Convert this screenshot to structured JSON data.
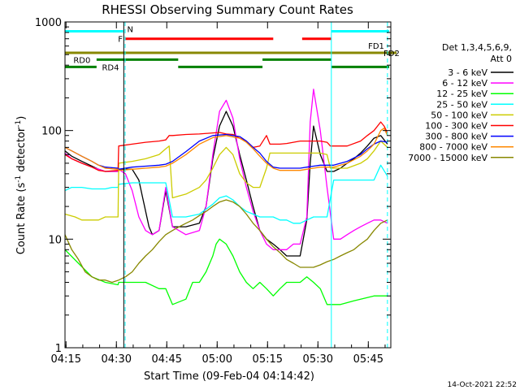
{
  "chart_data": {
    "type": "line",
    "title": "RHESSI Observing Summary Count Rates",
    "xlabel": "Start Time (09-Feb-04 04:14:42)",
    "ylabel_main": "Count Rate (s",
    "ylabel_sup1": "-1",
    "ylabel_mid": " detector",
    "ylabel_sup2": "-1",
    "ylabel_end": ")",
    "yscale": "log",
    "ylim": [
      1,
      1000
    ],
    "x_unit": "minutes after 04:14:42",
    "xlim": [
      0,
      97
    ],
    "x_ticks": [
      {
        "x": 0.3,
        "label": "04:15"
      },
      {
        "x": 15.3,
        "label": "04:30"
      },
      {
        "x": 30.3,
        "label": "04:45"
      },
      {
        "x": 45.3,
        "label": "05:00"
      },
      {
        "x": 60.3,
        "label": "05:15"
      },
      {
        "x": 75.3,
        "label": "05:30"
      },
      {
        "x": 90.3,
        "label": "05:45"
      }
    ],
    "y_ticks": [
      {
        "y": 1,
        "label": "1"
      },
      {
        "y": 10,
        "label": "10"
      },
      {
        "y": 100,
        "label": "100"
      },
      {
        "y": 1000,
        "label": "1000"
      }
    ],
    "legend_header": [
      "Det 1,3,4,5,6,9,",
      "Att 0"
    ],
    "series": [
      {
        "name": "3 - 6 keV",
        "color": "#000000",
        "x": [
          0,
          2,
          5,
          8,
          10,
          12,
          14,
          15.8,
          16,
          20,
          22,
          23,
          25,
          26,
          28,
          30,
          32,
          36,
          40,
          42,
          44,
          46,
          48,
          50,
          52,
          54,
          56,
          58,
          60,
          62,
          64,
          66,
          68,
          70,
          72,
          73,
          74,
          76,
          78,
          80,
          82,
          84,
          86,
          88,
          90,
          92,
          94,
          96
        ],
        "y": [
          65,
          58,
          52,
          47,
          44,
          42,
          42,
          42,
          44,
          44,
          35,
          25,
          13,
          11,
          12,
          28,
          13,
          13,
          14,
          20,
          55,
          110,
          150,
          110,
          60,
          35,
          20,
          12,
          10,
          9,
          8,
          7,
          7,
          7,
          15,
          50,
          110,
          60,
          42,
          42,
          45,
          50,
          55,
          62,
          72,
          85,
          90,
          75
        ]
      },
      {
        "name": "6 - 12 keV",
        "color": "#ff00ff",
        "x": [
          0,
          2,
          5,
          8,
          10,
          12,
          14,
          15.8,
          16,
          18,
          20,
          22,
          24,
          26,
          28,
          30,
          32,
          36,
          40,
          42,
          44,
          46,
          48,
          50,
          52,
          54,
          56,
          58,
          60,
          62,
          64,
          66,
          68,
          70,
          72,
          73,
          74,
          76,
          78,
          80,
          82,
          84,
          86,
          88,
          90,
          92,
          94,
          96
        ],
        "y": [
          62,
          55,
          50,
          46,
          44,
          42,
          42,
          42,
          44,
          40,
          28,
          16,
          12,
          11,
          12,
          30,
          13,
          11,
          12,
          20,
          60,
          150,
          190,
          130,
          55,
          30,
          18,
          12,
          9,
          8,
          8,
          8,
          9,
          9,
          16,
          120,
          240,
          100,
          30,
          10,
          10,
          11,
          12,
          13,
          14,
          15,
          15,
          14
        ]
      },
      {
        "name": "12 - 25 keV",
        "color": "#00ff00",
        "x": [
          0,
          4,
          8,
          12,
          15.8,
          16,
          20,
          24,
          28,
          30,
          32,
          36,
          38,
          40,
          42,
          44,
          45,
          46,
          48,
          50,
          52,
          54,
          56,
          58,
          60,
          62,
          64,
          66,
          68,
          70,
          72,
          74,
          76,
          78,
          80,
          82,
          84,
          86,
          88,
          90,
          92,
          94,
          96
        ],
        "y": [
          8,
          6,
          4.5,
          4,
          3.8,
          4,
          4,
          4,
          3.5,
          3.5,
          2.5,
          2.8,
          4,
          4,
          5,
          7,
          9,
          10,
          9,
          7,
          5,
          4,
          3.5,
          4,
          3.5,
          3,
          3.5,
          4,
          4,
          4,
          4.5,
          4,
          3.5,
          2.5,
          2.5,
          2.5,
          2.6,
          2.7,
          2.8,
          2.9,
          3,
          3,
          3
        ]
      },
      {
        "name": "25 - 50 keV",
        "color": "#00ffff",
        "x": [
          0,
          2,
          5,
          8,
          10,
          12,
          14,
          15.8,
          16,
          20,
          24,
          28,
          30,
          32,
          36,
          40,
          44,
          46,
          48,
          50,
          52,
          54,
          56,
          58,
          60,
          62,
          64,
          66,
          68,
          70,
          72,
          74,
          76,
          78,
          80,
          82,
          84,
          86,
          88,
          90,
          92,
          94,
          96
        ],
        "y": [
          28,
          30,
          30,
          29,
          29,
          29,
          30,
          30,
          32,
          33,
          33,
          33,
          33,
          16,
          16,
          17,
          21,
          24,
          25,
          23,
          20,
          18,
          17,
          16,
          16,
          16,
          15,
          15,
          14,
          14,
          15,
          16,
          16,
          16,
          35,
          35,
          35,
          35,
          35,
          35,
          35,
          48,
          38
        ]
      },
      {
        "name": "50 - 100 keV",
        "color": "#cccc00",
        "x": [
          0,
          3,
          5,
          8,
          10,
          12,
          15.8,
          16,
          20,
          24,
          28,
          30,
          31,
          32,
          34,
          36,
          40,
          42,
          44,
          46,
          48,
          50,
          52,
          54,
          56,
          58,
          60,
          61,
          62,
          64,
          66,
          68,
          70,
          72,
          74,
          76,
          78,
          79,
          80,
          84,
          88,
          90,
          92,
          94,
          96
        ],
        "y": [
          17,
          16,
          15,
          15,
          15,
          16,
          16,
          50,
          52,
          55,
          60,
          68,
          72,
          24,
          25,
          26,
          30,
          35,
          45,
          60,
          70,
          60,
          40,
          33,
          30,
          30,
          45,
          62,
          62,
          62,
          62,
          62,
          62,
          62,
          62,
          62,
          60,
          45,
          45,
          45,
          50,
          55,
          65,
          80,
          70
        ]
      },
      {
        "name": "100 - 300 keV",
        "color": "#ff0000",
        "x": [
          0,
          2,
          5,
          8,
          10,
          12,
          15.8,
          16,
          20,
          24,
          28,
          30,
          31,
          32,
          36,
          40,
          44,
          46,
          48,
          50,
          52,
          54,
          56,
          58,
          60,
          61,
          62,
          64,
          66,
          68,
          70,
          72,
          74,
          76,
          78,
          79,
          80,
          84,
          88,
          90,
          92,
          94,
          95,
          96
        ],
        "y": [
          60,
          55,
          50,
          46,
          43,
          42,
          43,
          72,
          75,
          78,
          80,
          82,
          90,
          90,
          92,
          93,
          95,
          96,
          93,
          92,
          85,
          80,
          70,
          72,
          90,
          75,
          75,
          75,
          76,
          78,
          80,
          80,
          80,
          80,
          78,
          72,
          72,
          72,
          80,
          90,
          100,
          120,
          110,
          95
        ]
      },
      {
        "name": "300 - 800 keV",
        "color": "#0000ff",
        "x": [
          0,
          2,
          5,
          8,
          10,
          12,
          15.8,
          16,
          20,
          24,
          28,
          30,
          32,
          36,
          40,
          44,
          48,
          52,
          54,
          56,
          58,
          60,
          62,
          64,
          66,
          68,
          70,
          72,
          74,
          76,
          78,
          80,
          84,
          88,
          90,
          92,
          94,
          96
        ],
        "y": [
          70,
          65,
          58,
          52,
          48,
          46,
          45,
          44,
          46,
          47,
          48,
          49,
          52,
          64,
          80,
          90,
          92,
          88,
          80,
          70,
          62,
          52,
          46,
          45,
          45,
          45,
          45,
          46,
          47,
          48,
          48,
          48,
          52,
          60,
          68,
          75,
          80,
          78
        ]
      },
      {
        "name": "800 - 7000 keV",
        "color": "#ff8800",
        "x": [
          0,
          2,
          5,
          8,
          10,
          12,
          15.8,
          16,
          20,
          24,
          28,
          30,
          32,
          36,
          40,
          44,
          48,
          52,
          54,
          56,
          58,
          60,
          62,
          64,
          66,
          68,
          70,
          72,
          74,
          76,
          78,
          80,
          84,
          88,
          90,
          92,
          94,
          95,
          96
        ],
        "y": [
          70,
          65,
          58,
          52,
          48,
          45,
          44,
          43,
          44,
          45,
          46,
          47,
          50,
          60,
          75,
          86,
          90,
          85,
          78,
          68,
          58,
          50,
          45,
          43,
          43,
          43,
          43,
          44,
          45,
          46,
          46,
          46,
          50,
          58,
          65,
          75,
          100,
          105,
          90
        ]
      },
      {
        "name": "7000 - 15000 keV",
        "color": "#888800",
        "x": [
          0,
          2,
          4,
          6,
          8,
          10,
          12,
          14,
          16,
          18,
          20,
          22,
          24,
          26,
          28,
          30,
          32,
          34,
          36,
          38,
          40,
          42,
          44,
          46,
          48,
          50,
          52,
          54,
          56,
          58,
          60,
          62,
          64,
          66,
          68,
          70,
          72,
          74,
          76,
          78,
          80,
          82,
          84,
          86,
          88,
          90,
          92,
          94,
          96
        ],
        "y": [
          11,
          8,
          6.5,
          5,
          4.5,
          4.2,
          4.2,
          4,
          4.2,
          4.5,
          5,
          6,
          7,
          8,
          9.5,
          11,
          12,
          13,
          14,
          15,
          16.5,
          18,
          20,
          22,
          23,
          22,
          20,
          17,
          14,
          12,
          10,
          8.5,
          7.5,
          6.5,
          6,
          5.5,
          5.5,
          5.5,
          5.8,
          6.2,
          6.5,
          7,
          7.5,
          8,
          9,
          10,
          12,
          14,
          15
        ]
      }
    ],
    "vlines": [
      {
        "x": 0,
        "color": "#00ffff",
        "style": "solid"
      },
      {
        "x": 17.9,
        "color": "#00ffff",
        "style": "dashed"
      },
      {
        "x": 17.5,
        "color": "#000000",
        "style": "solid"
      },
      {
        "x": 79.3,
        "color": "#00ffff",
        "style": "solid"
      },
      {
        "x": 96.0,
        "color": "#00ffff",
        "style": "dashed"
      }
    ],
    "flag_bars": [
      {
        "label": "N",
        "color": "#00ffff",
        "y": 820,
        "segments": [
          [
            0,
            17.3
          ],
          [
            79.3,
            96.5
          ]
        ]
      },
      {
        "label": "F",
        "color": "#ff0000",
        "y": 700,
        "segments": [
          [
            17.9,
            62
          ],
          [
            70.6,
            79.3
          ]
        ]
      },
      {
        "label": "FD1",
        "color": "#888800",
        "y": 520,
        "segments": [
          [
            0,
            101
          ]
        ]
      },
      {
        "label": "RD0",
        "color": "#008000",
        "y": 450,
        "segments": [
          [
            9.4,
            33.7
          ],
          [
            58.8,
            79.3
          ]
        ]
      },
      {
        "label": "RD4",
        "color": "#008000",
        "y": 385,
        "segments": [
          [
            0,
            9.4
          ],
          [
            33.7,
            58.8
          ],
          [
            79.3,
            96.5
          ]
        ]
      }
    ],
    "fd2_label": "FD2",
    "timestamp": "14-Oct-2021 22:52"
  }
}
